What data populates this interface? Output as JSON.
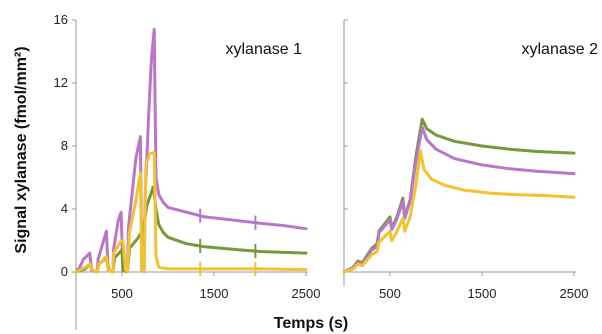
{
  "figure": {
    "ylabel": "Signal xylanase (fmol/mm²)",
    "xlabel": "Temps (s)"
  },
  "colors": {
    "purple": "#b877c9",
    "green": "#79973b",
    "yellow": "#f2c232"
  },
  "chart_data": [
    {
      "type": "line",
      "title": "xylanase 1",
      "xlabel": "Temps (s)",
      "ylabel": "Signal xylanase (fmol/mm²)",
      "xlim": [
        0,
        2500
      ],
      "ylim": [
        0,
        16
      ],
      "xticks": [
        500,
        1500,
        2500
      ],
      "yticks": [
        0,
        4,
        8,
        12,
        16
      ],
      "grid": false,
      "legend": "none",
      "series": [
        {
          "color": "#b877c9",
          "points": [
            [
              0,
              0
            ],
            [
              40,
              0.3
            ],
            [
              80,
              0.8
            ],
            [
              150,
              1.2
            ],
            [
              170,
              0.1
            ],
            [
              230,
              0
            ],
            [
              240,
              0.8
            ],
            [
              300,
              2.0
            ],
            [
              330,
              2.6
            ],
            [
              350,
              0.1
            ],
            [
              400,
              0
            ],
            [
              410,
              1.5
            ],
            [
              460,
              3.3
            ],
            [
              490,
              3.8
            ],
            [
              510,
              0.1
            ],
            [
              560,
              0
            ],
            [
              570,
              2.8
            ],
            [
              620,
              5.5
            ],
            [
              650,
              7.2
            ],
            [
              700,
              8.6
            ],
            [
              715,
              0.1
            ],
            [
              740,
              0
            ],
            [
              750,
              4.5
            ],
            [
              790,
              10.0
            ],
            [
              820,
              13.5
            ],
            [
              850,
              15.4
            ],
            [
              870,
              6.0
            ],
            [
              900,
              4.9
            ],
            [
              950,
              4.4
            ],
            [
              1000,
              4.1
            ],
            [
              1200,
              3.8
            ],
            [
              1400,
              3.5
            ],
            [
              1700,
              3.3
            ],
            [
              2000,
              3.1
            ],
            [
              2250,
              2.95
            ],
            [
              2500,
              2.75
            ]
          ]
        },
        {
          "color": "#79973b",
          "points": [
            [
              0,
              0
            ],
            [
              100,
              0.2
            ],
            [
              150,
              0.5
            ],
            [
              180,
              0.1
            ],
            [
              230,
              0
            ],
            [
              250,
              0.5
            ],
            [
              330,
              0.9
            ],
            [
              360,
              0.1
            ],
            [
              400,
              0
            ],
            [
              420,
              0.9
            ],
            [
              500,
              1.4
            ],
            [
              510,
              0.1
            ],
            [
              560,
              0
            ],
            [
              580,
              1.5
            ],
            [
              680,
              2.2
            ],
            [
              710,
              2.5
            ],
            [
              740,
              3.0
            ],
            [
              770,
              4.2
            ],
            [
              840,
              5.4
            ],
            [
              870,
              4.0
            ],
            [
              900,
              3.0
            ],
            [
              950,
              2.5
            ],
            [
              1000,
              2.2
            ],
            [
              1200,
              1.8
            ],
            [
              1400,
              1.6
            ],
            [
              1700,
              1.45
            ],
            [
              2000,
              1.3
            ],
            [
              2500,
              1.2
            ]
          ]
        },
        {
          "color": "#f2c232",
          "points": [
            [
              0,
              0
            ],
            [
              100,
              0.3
            ],
            [
              150,
              0.5
            ],
            [
              180,
              0.1
            ],
            [
              230,
              0
            ],
            [
              250,
              0.5
            ],
            [
              330,
              1.0
            ],
            [
              350,
              0.1
            ],
            [
              400,
              0
            ],
            [
              410,
              1.2
            ],
            [
              480,
              1.9
            ],
            [
              510,
              2.0
            ],
            [
              540,
              0.1
            ],
            [
              560,
              0
            ],
            [
              580,
              2.5
            ],
            [
              650,
              4.5
            ],
            [
              700,
              6.3
            ],
            [
              715,
              0.1
            ],
            [
              740,
              0
            ],
            [
              760,
              6.8
            ],
            [
              800,
              7.5
            ],
            [
              850,
              7.6
            ],
            [
              870,
              1.0
            ],
            [
              900,
              0.3
            ],
            [
              1000,
              0.2
            ],
            [
              1500,
              0.2
            ],
            [
              2000,
              0.2
            ],
            [
              2500,
              0.15
            ]
          ]
        }
      ]
    },
    {
      "type": "line",
      "title": "xylanase 2",
      "xlabel": "Temps (s)",
      "ylabel": "Signal xylanase (fmol/mm²)",
      "xlim": [
        0,
        2500
      ],
      "ylim": [
        0,
        16
      ],
      "xticks": [
        500,
        1500,
        2500
      ],
      "yticks": [
        0,
        4,
        8,
        12,
        16
      ],
      "grid": false,
      "legend": "none",
      "series": [
        {
          "color": "#79973b",
          "points": [
            [
              0,
              0
            ],
            [
              100,
              0.3
            ],
            [
              150,
              0.7
            ],
            [
              200,
              0.6
            ],
            [
              300,
              1.5
            ],
            [
              360,
              1.8
            ],
            [
              380,
              2.6
            ],
            [
              500,
              3.5
            ],
            [
              520,
              2.8
            ],
            [
              570,
              3.4
            ],
            [
              640,
              4.7
            ],
            [
              660,
              3.5
            ],
            [
              720,
              4.6
            ],
            [
              780,
              7.3
            ],
            [
              850,
              9.7
            ],
            [
              900,
              9.1
            ],
            [
              1000,
              8.7
            ],
            [
              1200,
              8.3
            ],
            [
              1500,
              8.0
            ],
            [
              1800,
              7.8
            ],
            [
              2100,
              7.65
            ],
            [
              2500,
              7.55
            ]
          ]
        },
        {
          "color": "#b877c9",
          "points": [
            [
              0,
              0
            ],
            [
              100,
              0.3
            ],
            [
              150,
              0.6
            ],
            [
              200,
              0.5
            ],
            [
              300,
              1.4
            ],
            [
              360,
              1.6
            ],
            [
              380,
              2.5
            ],
            [
              500,
              3.3
            ],
            [
              520,
              2.7
            ],
            [
              570,
              3.3
            ],
            [
              640,
              4.5
            ],
            [
              660,
              3.4
            ],
            [
              720,
              4.5
            ],
            [
              780,
              7.0
            ],
            [
              850,
              9.2
            ],
            [
              900,
              8.4
            ],
            [
              1000,
              7.8
            ],
            [
              1200,
              7.2
            ],
            [
              1500,
              6.8
            ],
            [
              1800,
              6.55
            ],
            [
              2100,
              6.4
            ],
            [
              2500,
              6.25
            ]
          ]
        },
        {
          "color": "#f2c232",
          "points": [
            [
              0,
              0
            ],
            [
              100,
              0.2
            ],
            [
              150,
              0.5
            ],
            [
              200,
              0.4
            ],
            [
              300,
              1.1
            ],
            [
              360,
              1.3
            ],
            [
              380,
              1.9
            ],
            [
              500,
              2.6
            ],
            [
              520,
              2.0
            ],
            [
              570,
              2.5
            ],
            [
              640,
              3.4
            ],
            [
              660,
              2.6
            ],
            [
              720,
              3.5
            ],
            [
              780,
              5.5
            ],
            [
              830,
              7.7
            ],
            [
              870,
              6.5
            ],
            [
              950,
              5.9
            ],
            [
              1100,
              5.5
            ],
            [
              1300,
              5.2
            ],
            [
              1600,
              5.0
            ],
            [
              1900,
              4.9
            ],
            [
              2200,
              4.85
            ],
            [
              2500,
              4.75
            ]
          ]
        }
      ]
    }
  ]
}
